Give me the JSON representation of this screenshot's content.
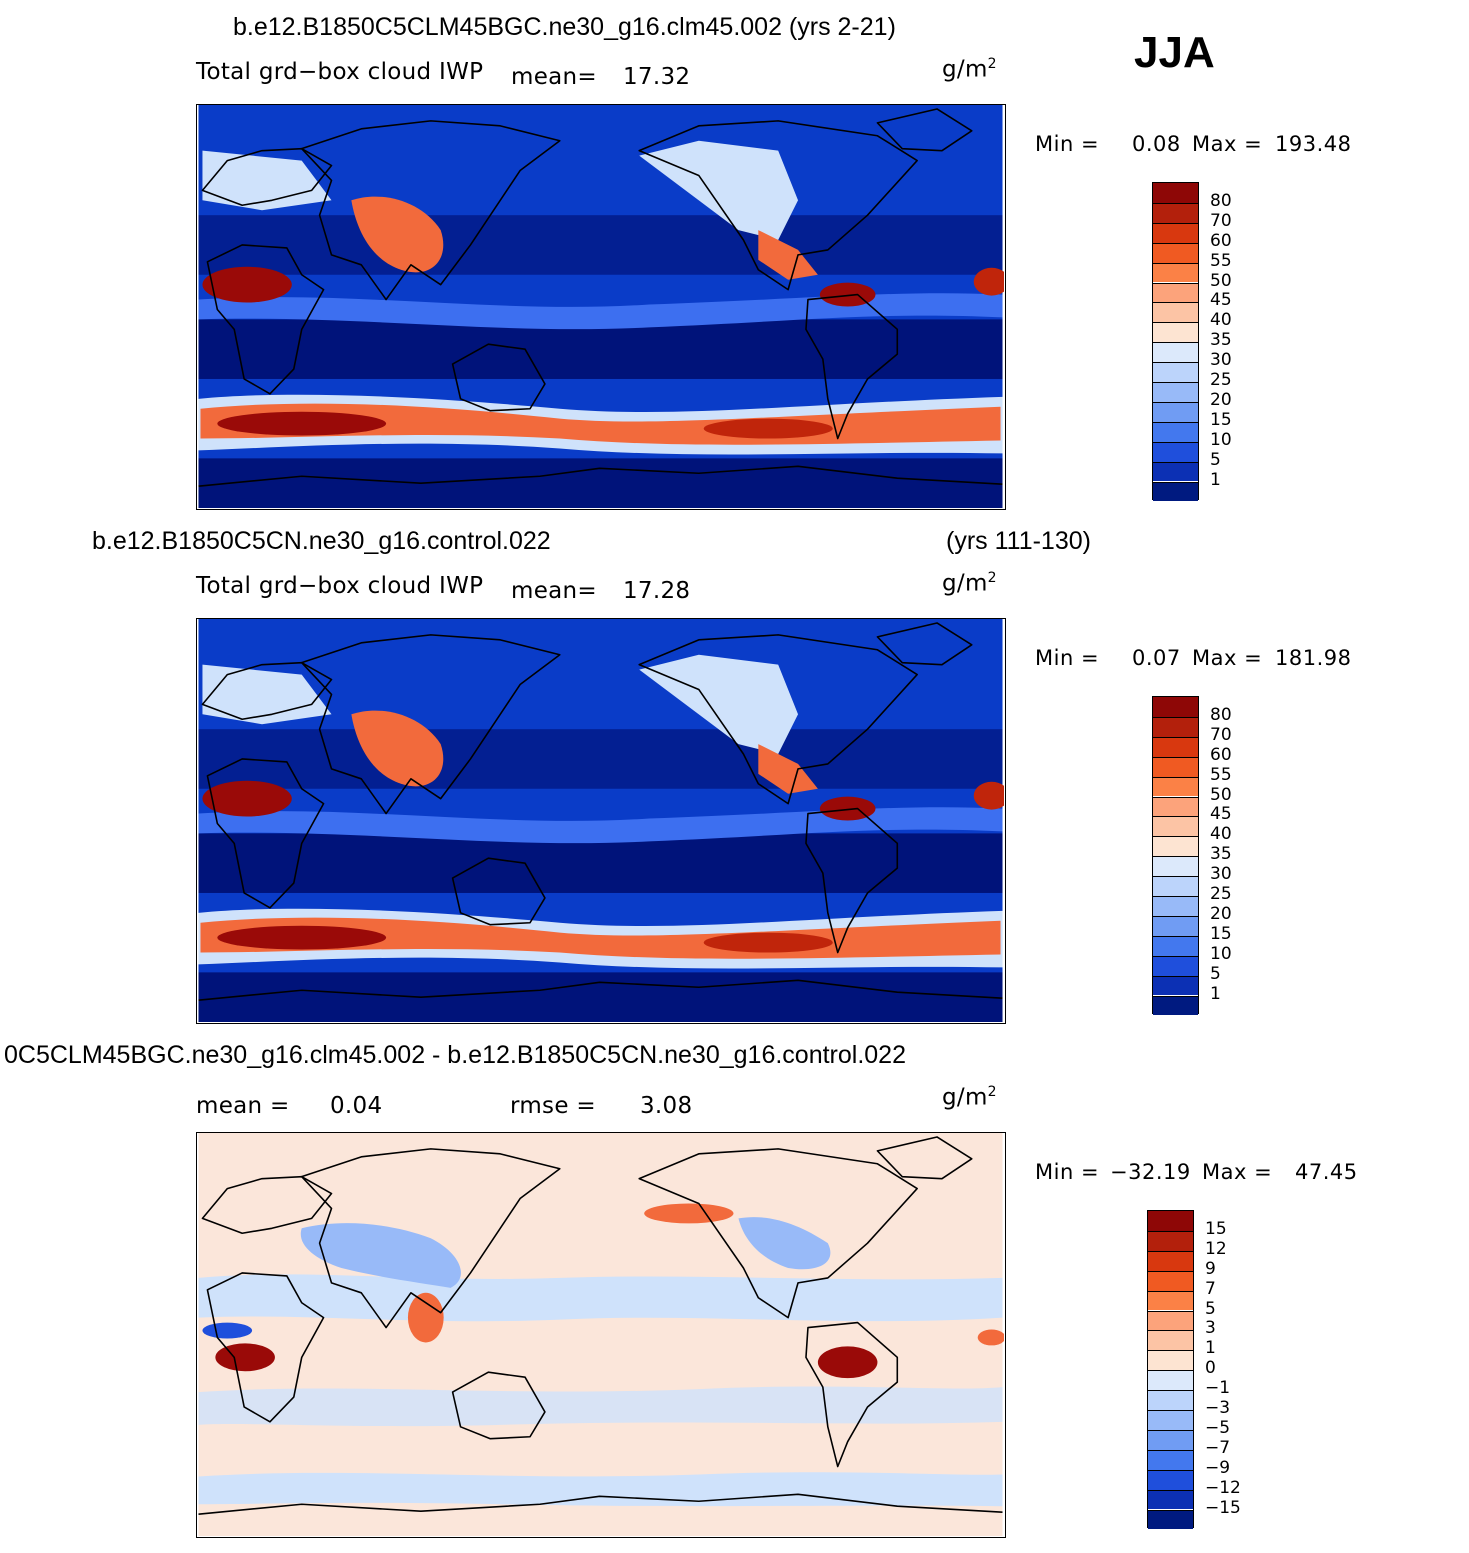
{
  "season": "JJA",
  "units_base": "g/m",
  "units_exp": "2",
  "colors": {
    "ocean_dark": "#00137a",
    "ocean_mid": "#0a3cc8",
    "ocean_light": "#3d6ff0",
    "pale_blue": "#cfe2fb",
    "pale_red": "#fde4d6",
    "mid_red": "#f26a3c",
    "dark_red": "#9a0a08",
    "diff_bg": "#fbe6da"
  },
  "panels": [
    {
      "title": "b.e12.B1850C5CLM45BGC.ne30_g16.clm45.002 (yrs 2-21)",
      "variable": "Total grd−box cloud IWP",
      "mean_label": "mean=",
      "mean_value": "17.32",
      "min_label": "Min =",
      "min_value": "0.08",
      "max_label": "Max =",
      "max_value": "193.48",
      "scale": "abs"
    },
    {
      "title_left": "b.e12.B1850C5CN.ne30_g16.control.022",
      "title_right": "(yrs 111-130)",
      "variable": "Total grd−box cloud IWP",
      "mean_label": "mean=",
      "mean_value": "17.28",
      "min_label": "Min =",
      "min_value": "0.07",
      "max_label": "Max =",
      "max_value": "181.98",
      "scale": "abs"
    },
    {
      "title": "0C5CLM45BGC.ne30_g16.clm45.002 - b.e12.B1850C5CN.ne30_g16.control.022",
      "mean_label": "mean =",
      "mean_value": "0.04",
      "rmse_label": "rmse =",
      "rmse_value": "3.08",
      "min_label": "Min =",
      "min_value": "−32.19",
      "max_label": "Max =",
      "max_value": "47.45",
      "scale": "diff"
    }
  ],
  "colorbars": {
    "abs": {
      "labels": [
        "80",
        "70",
        "60",
        "55",
        "50",
        "45",
        "40",
        "35",
        "30",
        "25",
        "20",
        "15",
        "10",
        "5",
        "1"
      ],
      "colors": [
        "#8e0706",
        "#b3200c",
        "#d8380f",
        "#f05a22",
        "#fb8146",
        "#fca37b",
        "#fcc4a5",
        "#fde4d2",
        "#dce9fb",
        "#bcd4fb",
        "#98baf8",
        "#709cf3",
        "#4378ee",
        "#1f4fdc",
        "#0c30b4",
        "#001a80"
      ]
    },
    "diff": {
      "labels": [
        "15",
        "12",
        "9",
        "7",
        "5",
        "3",
        "1",
        "0",
        "−1",
        "−3",
        "−5",
        "−7",
        "−9",
        "−12",
        "−15"
      ],
      "colors": [
        "#8e0706",
        "#b3200c",
        "#d8380f",
        "#f05a22",
        "#fb8146",
        "#fca37b",
        "#fcc4a5",
        "#fde4d2",
        "#dce9fb",
        "#bcd4fb",
        "#98baf8",
        "#709cf3",
        "#4378ee",
        "#1f4fdc",
        "#0c30b4",
        "#001a80"
      ]
    }
  }
}
